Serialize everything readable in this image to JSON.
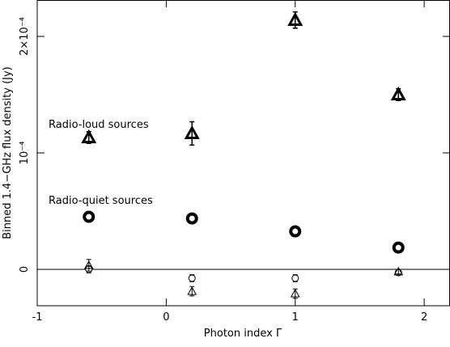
{
  "chart_data": {
    "type": "scatter",
    "x_label": "Photon index Γ",
    "y_label": "Binned 1.4−GHz flux density (Jy)",
    "xlim": [
      -1,
      2.2
    ],
    "xticks": [
      -1,
      0,
      1,
      2
    ],
    "ylim": [
      -3.125e-05,
      0.00023125
    ],
    "yticks": [
      0,
      {
        "value": 0.0001,
        "label": "10⁻⁴"
      },
      {
        "value": 0.0002,
        "label": "2×10⁻⁴"
      }
    ],
    "zero_line": true,
    "series": [
      {
        "name": "Radio-loud sources",
        "marker": "triangle",
        "size": "large",
        "color": "#000000",
        "x": [
          -0.6,
          0.2,
          1,
          1.8
        ],
        "values": [
          0.0001132,
          0.0001167,
          0.000214,
          0.00015
        ],
        "errors": [
          5e-06,
          1e-05,
          7e-06,
          5e-06
        ]
      },
      {
        "name": "Radio-quiet sources",
        "marker": "circle",
        "size": "large",
        "color": "#000000",
        "x": [
          -0.6,
          0.2,
          1,
          1.8
        ],
        "values": [
          4.51e-05,
          4.37e-05,
          3.26e-05,
          1.87e-05
        ],
        "errors": [
          1e-06,
          1e-06,
          1e-06,
          1e-06
        ]
      },
      {
        "marker": "circle",
        "size": "small",
        "color": "#000000",
        "x": [
          -0.6,
          0.2,
          1,
          1.8
        ],
        "values": [
          0,
          -7.6e-06,
          -7.6e-06,
          -2.8e-06
        ],
        "errors": [
          3e-06,
          3e-06,
          3e-06,
          2e-06
        ]
      },
      {
        "marker": "triangle",
        "size": "small",
        "color": "#000000",
        "x": [
          -0.6,
          0.2,
          1,
          1.8
        ],
        "values": [
          3.5e-06,
          -1.88e-05,
          -2.08e-05,
          -2e-06
        ],
        "errors": [
          5e-06,
          4e-06,
          4e-06,
          2e-06
        ]
      }
    ]
  }
}
